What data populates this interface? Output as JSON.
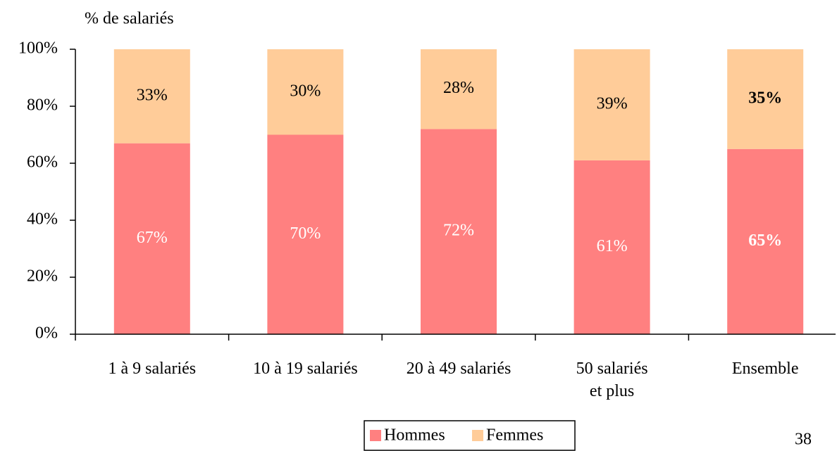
{
  "chart_data": {
    "type": "stacked_bar",
    "y_axis_label": "% de salariés",
    "categories": [
      "1 à 9 salariés",
      "10 à 19 salariés",
      "20 à 49 salariés",
      "50 salariés\net plus",
      "Ensemble"
    ],
    "series": [
      {
        "name": "Hommes",
        "color": "#ff8080",
        "label_color": "#ffffff",
        "values": [
          67,
          70,
          72,
          61,
          65
        ],
        "value_labels": [
          "67%",
          "70%",
          "72%",
          "61%",
          "65%"
        ]
      },
      {
        "name": "Femmes",
        "color": "#ffcc99",
        "label_color": "#000000",
        "values": [
          33,
          30,
          28,
          39,
          35
        ],
        "value_labels": [
          "33%",
          "30%",
          "28%",
          "39%",
          "35%"
        ]
      }
    ],
    "bold_index": 4,
    "ylim": [
      0,
      100
    ],
    "yticks": [
      {
        "value": 0,
        "label": "0%"
      },
      {
        "value": 20,
        "label": "20%"
      },
      {
        "value": 40,
        "label": "40%"
      },
      {
        "value": 60,
        "label": "60%"
      },
      {
        "value": 80,
        "label": "80%"
      },
      {
        "value": 100,
        "label": "100%"
      }
    ],
    "legend": "bottom",
    "page_number": "38"
  }
}
